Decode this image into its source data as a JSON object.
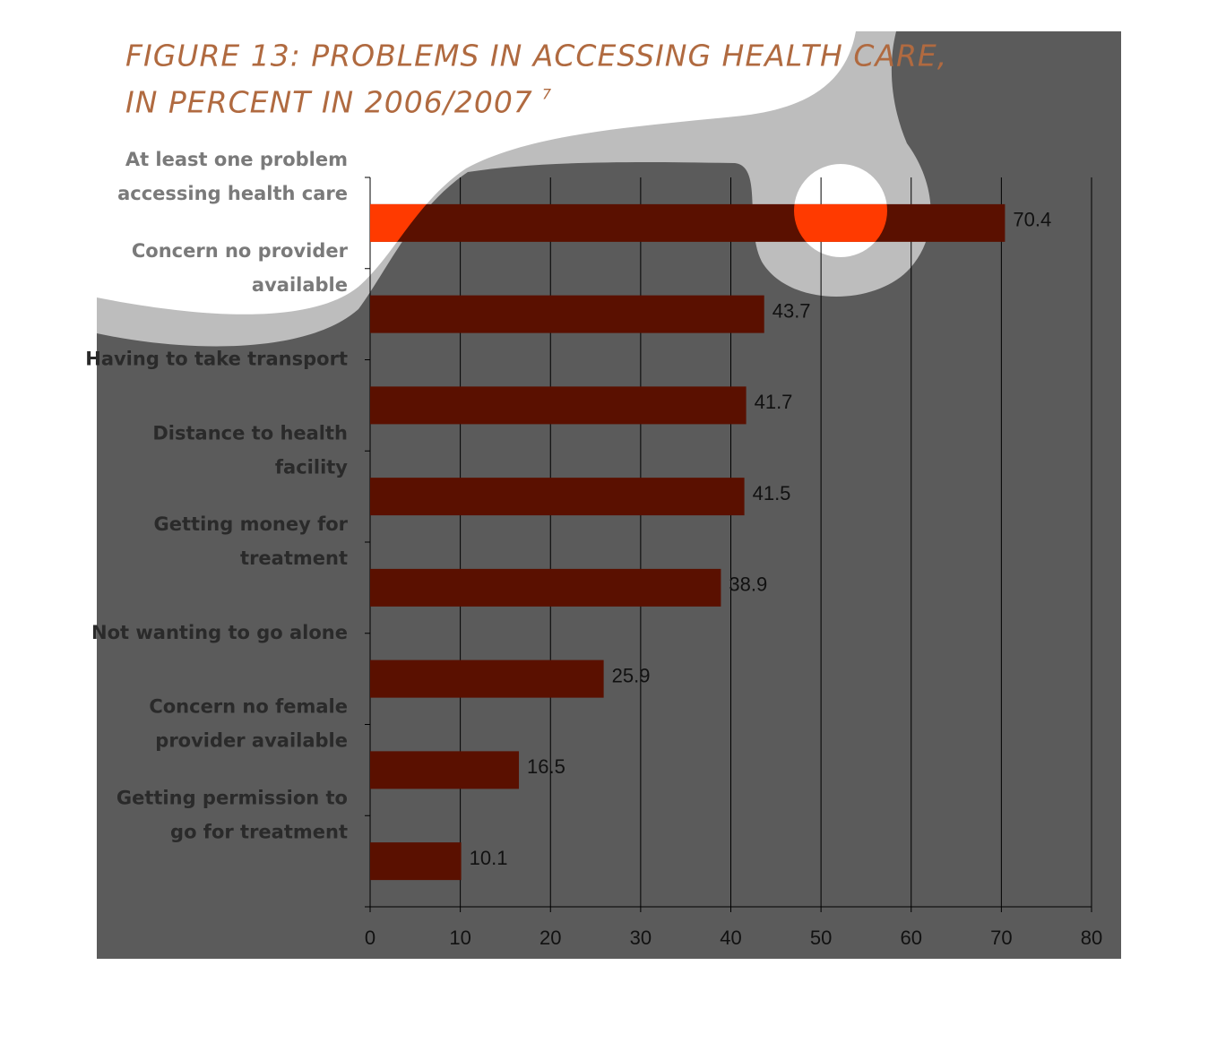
{
  "chart_data": {
    "type": "bar",
    "orientation": "horizontal",
    "title": [
      "FIGURE 13:  PROBLEMS IN ACCESSING HEALTH CARE,",
      "IN PERCENT  IN 2006/2007"
    ],
    "title_footnote": "7",
    "categories": [
      [
        "At least one problem",
        "accessing health care"
      ],
      [
        "Concern no provider",
        "available"
      ],
      [
        "Having to take transport"
      ],
      [
        "Distance to health",
        "facility"
      ],
      [
        "Getting money for",
        "treatment"
      ],
      [
        "Not wanting to go alone"
      ],
      [
        "Concern no female",
        "provider available"
      ],
      [
        "Getting permission to",
        "go for treatment"
      ]
    ],
    "values": [
      70.4,
      43.7,
      41.7,
      41.5,
      38.9,
      25.9,
      16.5,
      10.1
    ],
    "color": "#5a1000",
    "xlim": [
      0,
      80
    ],
    "xticks": [
      0,
      10,
      20,
      30,
      40,
      50,
      60,
      70,
      80
    ],
    "grid": true
  }
}
